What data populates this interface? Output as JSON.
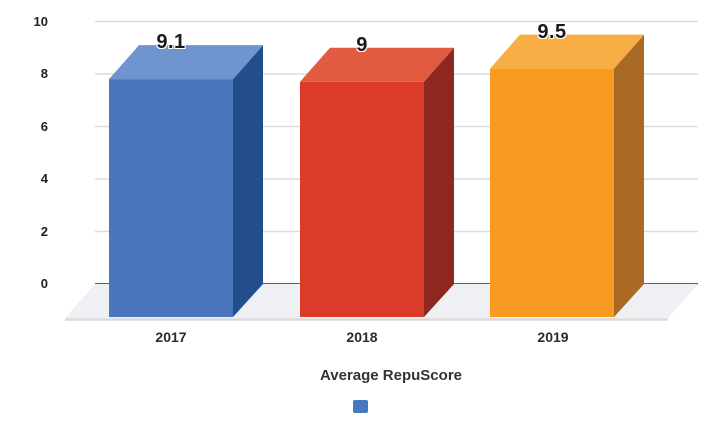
{
  "chart_data": {
    "type": "bar",
    "style": "3d-column",
    "title": "",
    "categories": [
      "2017",
      "2018",
      "2019"
    ],
    "series": [
      {
        "name": "Average RepuScore",
        "values": [
          9.1,
          9,
          9.5
        ]
      }
    ],
    "xlabel": "",
    "ylabel": "",
    "ylim": [
      0,
      10
    ],
    "yticks": [
      10,
      8,
      6,
      4,
      2,
      0
    ],
    "grid": true,
    "legend_position": "bottom-center",
    "legend": {
      "label": "Average RepuScore",
      "swatch_color": "#4677C0"
    },
    "bar_colors": [
      {
        "front": "#4A76BC",
        "top": "#7094CE",
        "side": "#234E8D"
      },
      {
        "front": "#DB3C2A",
        "top": "#E15B41",
        "side": "#8E271E"
      },
      {
        "front": "#F89B20",
        "top": "#F9AE45",
        "side": "#A96A26"
      }
    ]
  },
  "palette": {
    "background": "#ffffff",
    "gridline": "#DBDBDB",
    "zero_axis": "#616161",
    "floor_fill": "#EFF0F3",
    "floor_edge": "#D9D9D9",
    "tick_text": "#212121"
  }
}
